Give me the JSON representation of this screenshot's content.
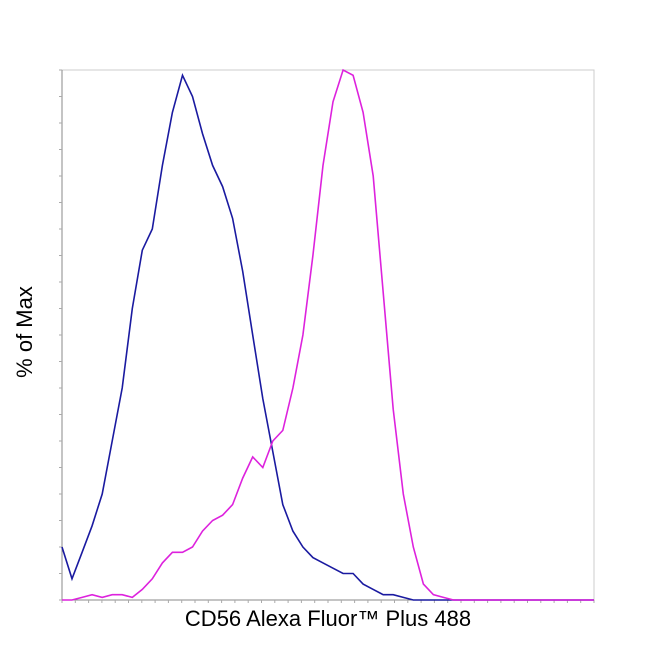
{
  "chart_data": {
    "type": "line",
    "x_label": "CD56 Alexa Fluor™ Plus 488",
    "y_label": "% of Max",
    "ylim": [
      0,
      100
    ],
    "series": [
      {
        "color": "#1a1aa0",
        "values": [
          10,
          4,
          9,
          14,
          20,
          30,
          40,
          55,
          66,
          70,
          82,
          92,
          99,
          95,
          88,
          82,
          78,
          72,
          62,
          50,
          38,
          28,
          18,
          13,
          10,
          8,
          7,
          6,
          5,
          5,
          3,
          2,
          1,
          1,
          0.5,
          0,
          0,
          0,
          0,
          0,
          0,
          0,
          0,
          0,
          0,
          0,
          0,
          0,
          0,
          0,
          0,
          0,
          0,
          0
        ]
      },
      {
        "color": "#dd22dd",
        "values": [
          0,
          0,
          0.5,
          1,
          0.5,
          1,
          1,
          0.5,
          2,
          4,
          7,
          9,
          9,
          10,
          13,
          15,
          16,
          18,
          23,
          27,
          25,
          30,
          32,
          40,
          50,
          65,
          82,
          94,
          100,
          99,
          92,
          80,
          58,
          36,
          20,
          10,
          3,
          1,
          0.5,
          0,
          0,
          0,
          0,
          0,
          0,
          0,
          0,
          0,
          0,
          0,
          0,
          0,
          0,
          0
        ]
      }
    ]
  }
}
